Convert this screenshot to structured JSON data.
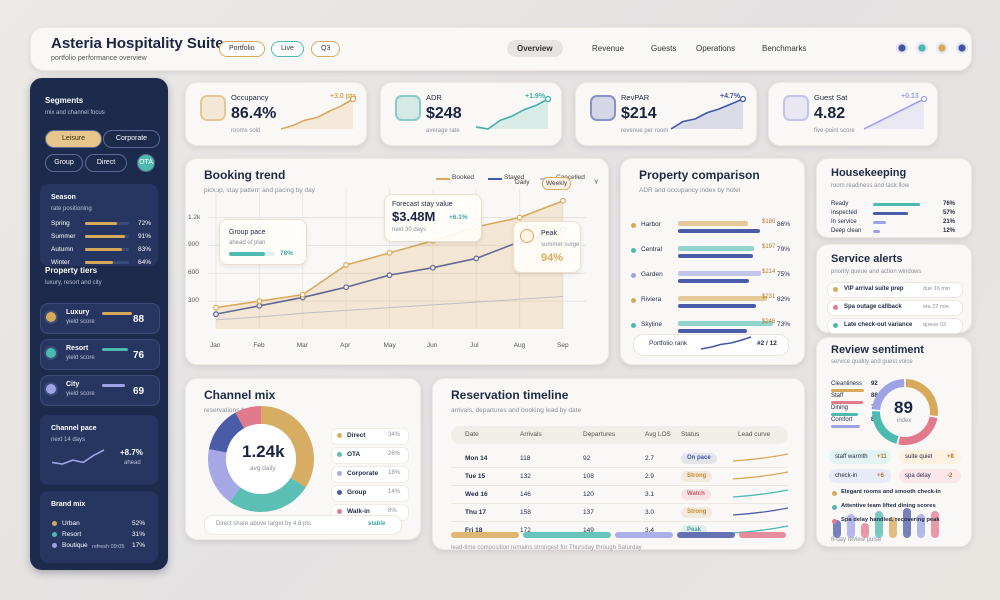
{
  "header": {
    "title": "Asteria Hospitality Suite",
    "subtitle": "portfolio performance overview",
    "chips": [
      "Portfolio",
      "Live",
      "Q3"
    ],
    "tabs": [
      "Overview",
      "Revenue",
      "Guests",
      "Operations",
      "Benchmarks"
    ]
  },
  "sidebar": {
    "segments": {
      "title": "Segments",
      "subtitle": "mix and channel focus",
      "buttons": [
        "Leisure",
        "Corporate",
        "Group",
        "Direct",
        "OTA"
      ]
    },
    "season": {
      "title": "Season",
      "subtitle": "rate positioning",
      "rows": [
        {
          "label": "Spring",
          "value": 72,
          "value_label": "72%"
        },
        {
          "label": "Summer",
          "value": 91,
          "value_label": "91%"
        },
        {
          "label": "Autumn",
          "value": 83,
          "value_label": "83%"
        },
        {
          "label": "Winter",
          "value": 64,
          "value_label": "64%"
        }
      ]
    },
    "tiers": {
      "title": "Property tiers",
      "subtitle": "luxury, resort and city",
      "rows": [
        {
          "label": "Luxury",
          "note": "yield score",
          "value": 88,
          "color": "#d9a95b"
        },
        {
          "label": "Resort",
          "note": "yield score",
          "value": 76,
          "color": "#4dbab0"
        },
        {
          "label": "City",
          "note": "yield score",
          "value": 69,
          "color": "#9ea3e6"
        }
      ]
    },
    "pace": {
      "title": "Channel pace",
      "subtitle": "next 14 days",
      "change": "+8.7%",
      "note": "ahead",
      "values": [
        3.2,
        3.0,
        3.5,
        3.2,
        4.1,
        4.8
      ]
    },
    "brand": {
      "title": "Brand mix",
      "rows": [
        {
          "label": "Urban",
          "value": 52,
          "value_label": "52%",
          "color": "#d9a95b"
        },
        {
          "label": "Resort",
          "value": 31,
          "value_label": "31%",
          "color": "#4dbab0"
        },
        {
          "label": "Boutique",
          "value": 17,
          "value_label": "17%",
          "color": "#9ea3e6"
        }
      ],
      "footer": "refresh 09:05"
    }
  },
  "kpis": [
    {
      "title": "Occupancy",
      "value": "86.4%",
      "note": "rooms sold",
      "change": "+3.0 pts",
      "color": "#d9a95b",
      "trend": [
        40,
        44,
        50,
        53,
        60,
        66,
        74
      ]
    },
    {
      "title": "ADR",
      "value": "$248",
      "note": "average rate",
      "change": "+1.9%",
      "color": "#3fb0a6",
      "trend": [
        50,
        49,
        53,
        55,
        58,
        60,
        63
      ]
    },
    {
      "title": "RevPAR",
      "value": "$214",
      "note": "revenue per room",
      "change": "+4.7%",
      "color": "#4257a8",
      "trend": [
        42,
        48,
        50,
        55,
        58,
        62,
        66
      ]
    },
    {
      "title": "Guest Sat",
      "value": "4.82",
      "note": "five-point score",
      "change": "+0.13",
      "color": "#9ea3e6",
      "trend": [
        60,
        61,
        62,
        63,
        64,
        65,
        66
      ]
    }
  ],
  "booking_trend": {
    "title": "Booking trend",
    "subtitle": "pickup, stay pattern and pacing by day",
    "toggles": [
      "Daily",
      "Weekly",
      "Y"
    ],
    "categories": [
      "Jan",
      "Feb",
      "Mar",
      "Apr",
      "May",
      "Jun",
      "Jul",
      "Aug",
      "Sep"
    ],
    "ylim": [
      0,
      1400
    ],
    "yticks": [
      300,
      600,
      900,
      {
        "value": 1200,
        "label": "1.2k"
      }
    ],
    "series": [
      {
        "name": "Booked",
        "color": "#d9a95b",
        "values": [
          230,
          300,
          370,
          690,
          820,
          950,
          1100,
          1200,
          1380
        ]
      },
      {
        "name": "Stayed",
        "color": "#4257a8",
        "values": [
          160,
          250,
          340,
          450,
          580,
          660,
          760,
          940,
          1070
        ]
      },
      {
        "name": "Cancelled",
        "color": "#b9c3ea",
        "values": [
          100,
          130,
          170,
          200,
          230,
          260,
          290,
          320,
          350
        ]
      }
    ],
    "group": {
      "title": "Group pace",
      "note": "ahead of plan",
      "value": 78,
      "value_label": "78%"
    },
    "forecast": {
      "title": "Forecast stay value",
      "value": "$3.48M",
      "change": "+6.1%",
      "note": "next 30 days"
    },
    "peak": {
      "title": "Peak",
      "note": "summer surge",
      "value": "94%"
    }
  },
  "property_comparison": {
    "title": "Property comparison",
    "subtitle": "ADR and occupancy index by hotel",
    "rows": [
      {
        "name": "Harbor",
        "color": "#d9a95b",
        "adr": 180,
        "adr_label": "$180",
        "occupancy": 86,
        "occupancy_label": "86%"
      },
      {
        "name": "Central",
        "color": "#4dbab0",
        "adr": 197,
        "adr_label": "$197",
        "occupancy": 79,
        "occupancy_label": "79%"
      },
      {
        "name": "Garden",
        "color": "#9ea3e6",
        "adr": 214,
        "adr_label": "$214",
        "occupancy": 75,
        "occupancy_label": "75%"
      },
      {
        "name": "Riviera",
        "color": "#d9a95b",
        "adr": 231,
        "adr_label": "$231",
        "occupancy": 82,
        "occupancy_label": "82%"
      },
      {
        "name": "Skyline",
        "color": "#4dbab0",
        "adr": 246,
        "adr_label": "$246",
        "occupancy": 73,
        "occupancy_label": "73%"
      }
    ],
    "rank_label": "Portfolio rank",
    "rank": "#2 / 12",
    "rank_trend": [
      2,
      2.4,
      3,
      3.3,
      3.9,
      4.6
    ]
  },
  "housekeeping": {
    "title": "Housekeeping",
    "subtitle": "room readiness and task flow",
    "rows": [
      {
        "label": "Ready",
        "value": 76,
        "value_label": "76%"
      },
      {
        "label": "Inspected",
        "value": 57,
        "value_label": "57%"
      },
      {
        "label": "In service",
        "value": 21,
        "value_label": "21%"
      },
      {
        "label": "Deep clean",
        "value": 12,
        "value_label": "12%"
      }
    ]
  },
  "service_alerts": {
    "title": "Service alerts",
    "subtitle": "priority queue and action windows",
    "items": [
      {
        "label": "VIP arrival suite prep",
        "time": "due 16 min",
        "color": "#d9a95b"
      },
      {
        "label": "Spa outage callback",
        "time": "eta 22 min",
        "color": "#e07a8c"
      },
      {
        "label": "Late check-out variance",
        "time": "queue 03",
        "color": "#4dbab0"
      }
    ]
  },
  "review_sentiment": {
    "title": "Review sentiment",
    "subtitle": "service quality and guest voice",
    "rows": [
      {
        "label": "Cleanliness",
        "value": 92,
        "color": "#d9a95b"
      },
      {
        "label": "Staff",
        "value": 88,
        "color": "#e07a8c"
      },
      {
        "label": "Dining",
        "value": 74,
        "color": "#4dbab0"
      },
      {
        "label": "Comfort",
        "value": 81,
        "color": "#9ea3e6"
      }
    ],
    "index": 89,
    "index_label": "index",
    "chips": [
      {
        "label": "staff warmth",
        "value": "+11"
      },
      {
        "label": "suite quiet",
        "value": "+8"
      },
      {
        "label": "check-in",
        "value": "+6"
      },
      {
        "label": "spa delay",
        "value": "-2"
      }
    ],
    "comments": [
      "Elegant rooms and smooth check-in",
      "Attentive team lifted dining scores",
      "Spa delay handled, recovering peak"
    ],
    "pulse": [
      6,
      8,
      5,
      9,
      7,
      10,
      8,
      9
    ],
    "footer": "8-day review pulse"
  },
  "channel_mix": {
    "title": "Channel mix",
    "subtitle": "reservations by channel",
    "total": "1.24k",
    "total_note": "avg daily",
    "slices": [
      {
        "name": "Direct",
        "color": "#d6ad63",
        "value": 34,
        "value_label": "34%"
      },
      {
        "name": "OTA",
        "color": "#5bbfb5",
        "value": 26,
        "value_label": "26%"
      },
      {
        "name": "Corporate",
        "color": "#a6a8e6",
        "value": 18,
        "value_label": "18%"
      },
      {
        "name": "Group",
        "color": "#4a5ba8",
        "value": 14,
        "value_label": "14%"
      },
      {
        "name": "Walk-in",
        "color": "#e07a8c",
        "value": 8,
        "value_label": "8%"
      }
    ],
    "footer": "Direct share above target by 4.6 pts",
    "status": "stable"
  },
  "reservation_timeline": {
    "title": "Reservation timeline",
    "subtitle": "arrivals, departures and booking lead by date",
    "columns": [
      "Date",
      "Arrivals",
      "Departures",
      "Avg LOS",
      "Status",
      "Lead curve"
    ],
    "rows": [
      [
        "Mon 14",
        "118",
        "92",
        "2.7",
        "On pace"
      ],
      [
        "Tue 15",
        "132",
        "108",
        "2.9",
        "Strong"
      ],
      [
        "Wed 16",
        "146",
        "120",
        "3.1",
        "Watch"
      ],
      [
        "Thu 17",
        "158",
        "137",
        "3.0",
        "Strong"
      ],
      [
        "Fri 18",
        "172",
        "149",
        "3.4",
        "Peak"
      ]
    ],
    "status_colors": [
      "#4257a8",
      "#c98a2e",
      "#d0566e",
      "#c98a2e",
      "#3fa89e"
    ],
    "footer": "lead-time composition remains strongest for Thursday through Saturday"
  }
}
